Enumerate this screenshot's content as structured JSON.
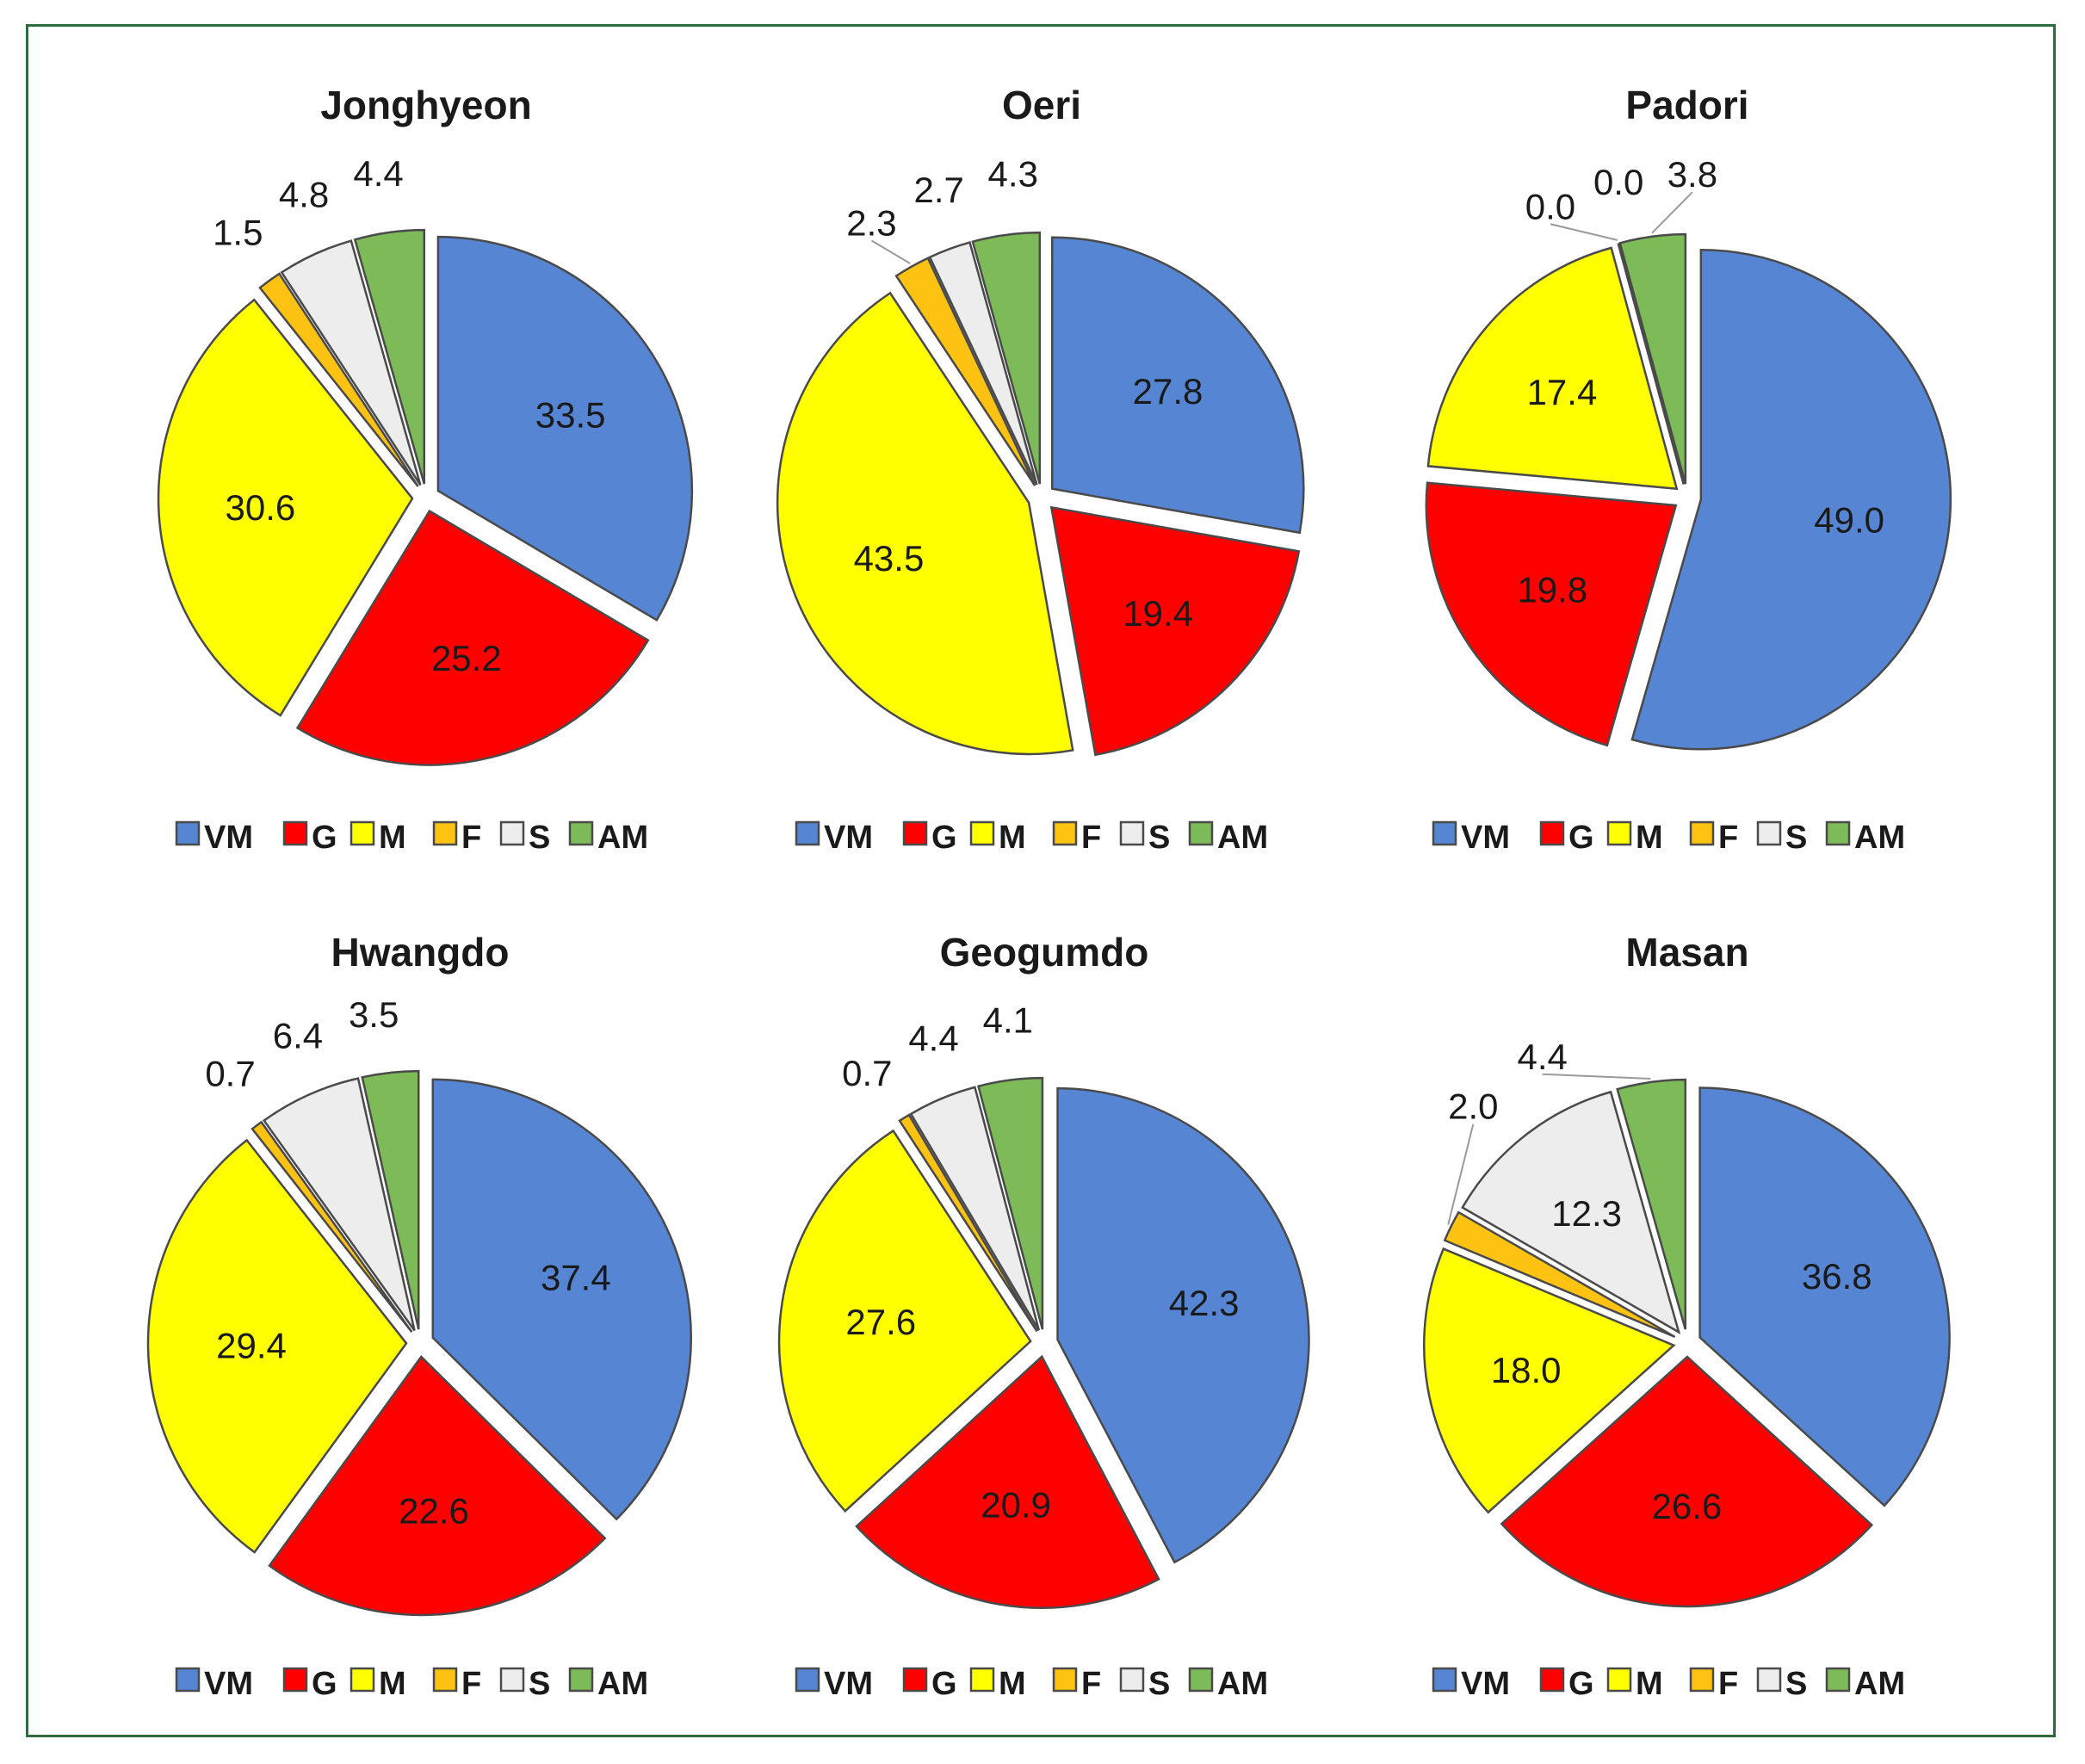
{
  "legend_colors": {
    "VM": "#5585d3",
    "G": "#ff0000",
    "M": "#ffff00",
    "F": "#fec312",
    "S": "#ededed",
    "AM": "#7dbb59"
  },
  "frame_color": "#2f6b3f",
  "chart_data": [
    {
      "type": "pie",
      "title": "Jonghyeon",
      "categories": [
        "VM",
        "G",
        "M",
        "F",
        "S",
        "AM"
      ],
      "values": [
        33.5,
        25.2,
        30.6,
        1.5,
        4.8,
        4.4
      ],
      "labels": [
        "33.5",
        "25.2",
        "30.6",
        "1.5",
        "4.8",
        "4.4"
      ],
      "legend": [
        "VM",
        "G",
        "M",
        "F",
        "S",
        "AM"
      ],
      "legend_position": "bottom"
    },
    {
      "type": "pie",
      "title": "Oeri",
      "categories": [
        "VM",
        "G",
        "M",
        "F",
        "S",
        "AM"
      ],
      "values": [
        27.8,
        19.4,
        43.5,
        2.3,
        2.7,
        4.3
      ],
      "labels": [
        "27.8",
        "19.4",
        "43.5",
        "2.3",
        "2.7",
        "4.3"
      ],
      "legend": [
        "VM",
        "G",
        "M",
        "F",
        "S",
        "AM"
      ],
      "legend_position": "bottom"
    },
    {
      "type": "pie",
      "title": "Padori",
      "categories": [
        "VM",
        "G",
        "M",
        "F",
        "S",
        "AM"
      ],
      "values": [
        49.0,
        19.8,
        17.4,
        0.0,
        0.0,
        3.8
      ],
      "labels": [
        "49.0",
        "19.8",
        "17.4",
        "0.0",
        "0.0",
        "3.8"
      ],
      "legend": [
        "VM",
        "G",
        "M",
        "F",
        "S",
        "AM"
      ],
      "legend_position": "bottom"
    },
    {
      "type": "pie",
      "title": "Hwangdo",
      "categories": [
        "VM",
        "G",
        "M",
        "F",
        "S",
        "AM"
      ],
      "values": [
        37.4,
        22.6,
        29.4,
        0.7,
        6.4,
        3.5
      ],
      "labels": [
        "37.4",
        "22.6",
        "29.4",
        "0.7",
        "6.4",
        "3.5"
      ],
      "legend": [
        "VM",
        "G",
        "M",
        "F",
        "S",
        "AM"
      ],
      "legend_position": "bottom"
    },
    {
      "type": "pie",
      "title": "Geogumdo",
      "categories": [
        "VM",
        "G",
        "M",
        "F",
        "S",
        "AM"
      ],
      "values": [
        42.3,
        20.9,
        27.6,
        0.7,
        4.4,
        4.1
      ],
      "labels": [
        "42.3",
        "20.9",
        "27.6",
        "0.7",
        "4.4",
        "4.1"
      ],
      "legend": [
        "VM",
        "G",
        "M",
        "F",
        "S",
        "AM"
      ],
      "legend_position": "bottom"
    },
    {
      "type": "pie",
      "title": "Masan",
      "categories": [
        "VM",
        "G",
        "M",
        "F",
        "S",
        "AM"
      ],
      "values": [
        36.8,
        26.6,
        18.0,
        2.0,
        12.3,
        4.4
      ],
      "labels": [
        "36.8",
        "26.6",
        "18.0",
        "2.0",
        "12.3",
        "4.4"
      ],
      "legend": [
        "VM",
        "G",
        "M",
        "F",
        "S",
        "AM"
      ],
      "legend_position": "bottom"
    }
  ]
}
